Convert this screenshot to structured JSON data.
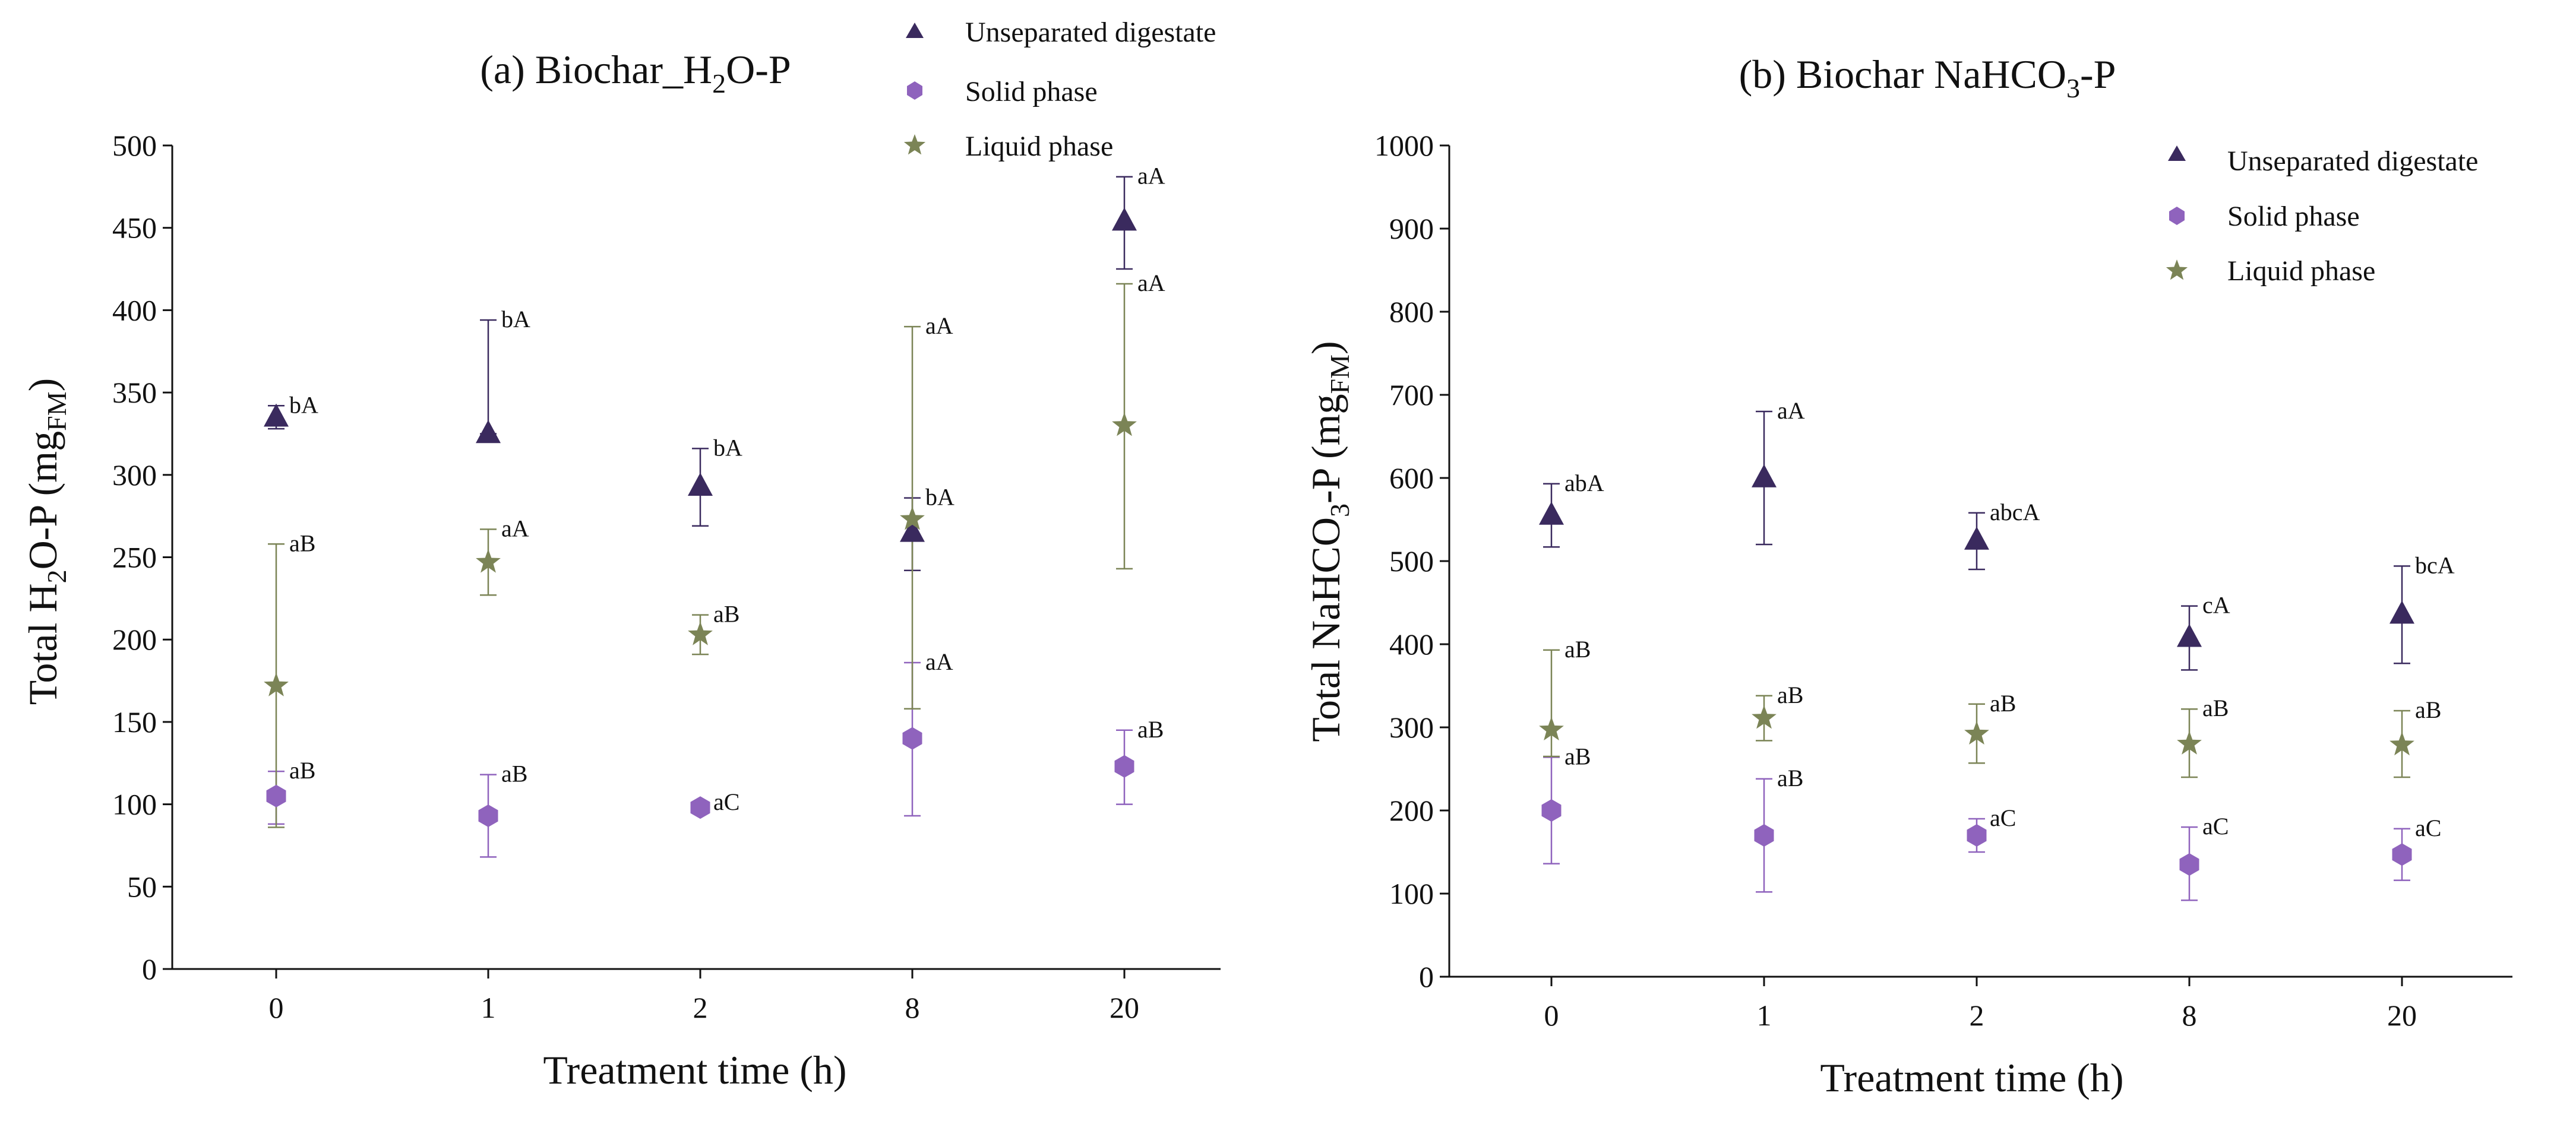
{
  "colors": {
    "unseparated": "#3a2a5e",
    "solid": "#8f63bd",
    "liquid": "#7b8456",
    "axis": "#111111"
  },
  "legend": {
    "unseparated": "Unseparated digestate",
    "solid": "Solid phase",
    "liquid": "Liquid phase"
  },
  "chart_data": [
    {
      "type": "scatter",
      "title_main": "(a) Biochar_H",
      "title_sub": "2",
      "title_rest": "O-P",
      "xlabel": "Treatment time (h)",
      "ylabel_main": "Total H",
      "ylabel_sub": "2",
      "ylabel_rest": "O-P (mg",
      "ylabel_unit_sub": "FM",
      "ylabel_close": ")",
      "categories": [
        "0",
        "1",
        "2",
        "8",
        "20"
      ],
      "ylim": [
        0,
        500
      ],
      "yticks": [
        0,
        50,
        100,
        150,
        200,
        250,
        300,
        350,
        400,
        450,
        500
      ],
      "legend_position": "top-center",
      "series": [
        {
          "key": "unseparated",
          "name": "Unseparated digestate",
          "marker": "triangle",
          "values": [
            335,
            325,
            293,
            265,
            454
          ],
          "err_low": [
            328,
            325,
            269,
            242,
            425
          ],
          "err_high": [
            342,
            394,
            316,
            286,
            481
          ],
          "labels": [
            "bA",
            "bA",
            "bA",
            "bA",
            "aA"
          ]
        },
        {
          "key": "solid",
          "name": "Solid phase",
          "marker": "hexagon",
          "values": [
            105,
            93,
            98,
            140,
            123
          ],
          "err_low": [
            88,
            68,
            95,
            93,
            100
          ],
          "err_high": [
            120,
            118,
            101,
            186,
            145
          ],
          "labels": [
            "aB",
            "aB",
            "aC",
            "aA",
            "aB"
          ]
        },
        {
          "key": "liquid",
          "name": "Liquid phase",
          "marker": "star",
          "values": [
            172,
            247,
            203,
            273,
            330
          ],
          "err_low": [
            86,
            227,
            191,
            158,
            243
          ],
          "err_high": [
            258,
            267,
            215,
            390,
            416
          ],
          "labels": [
            "aB",
            "aA",
            "aB",
            "aA",
            "aA"
          ]
        }
      ]
    },
    {
      "type": "scatter",
      "title_main": "(b) Biochar NaHCO",
      "title_sub": "3",
      "title_rest": "-P",
      "xlabel": "Treatment time (h)",
      "ylabel_main": "Total NaHCO",
      "ylabel_sub": "3",
      "ylabel_rest": "-P (mg",
      "ylabel_unit_sub": "FM",
      "ylabel_close": ")",
      "categories": [
        "0",
        "1",
        "2",
        "8",
        "20"
      ],
      "ylim": [
        0,
        1000
      ],
      "yticks": [
        0,
        100,
        200,
        300,
        400,
        500,
        600,
        700,
        800,
        900,
        1000
      ],
      "legend_position": "top-right",
      "series": [
        {
          "key": "unseparated",
          "name": "Unseparated digestate",
          "marker": "triangle",
          "values": [
            555,
            600,
            525,
            408,
            436
          ],
          "err_low": [
            517,
            520,
            490,
            369,
            377
          ],
          "err_high": [
            593,
            680,
            558,
            446,
            494
          ],
          "labels": [
            "abA",
            "aA",
            "abcA",
            "cA",
            "bcA"
          ]
        },
        {
          "key": "solid",
          "name": "Solid phase",
          "marker": "hexagon",
          "values": [
            200,
            170,
            170,
            135,
            147
          ],
          "err_low": [
            136,
            102,
            150,
            92,
            116
          ],
          "err_high": [
            264,
            238,
            190,
            180,
            178
          ],
          "labels": [
            "aB",
            "aB",
            "aC",
            "aC",
            "aC"
          ]
        },
        {
          "key": "liquid",
          "name": "Liquid phase",
          "marker": "star",
          "values": [
            297,
            311,
            292,
            280,
            279
          ],
          "err_low": [
            265,
            284,
            257,
            240,
            240
          ],
          "err_high": [
            393,
            338,
            328,
            322,
            320
          ],
          "labels": [
            "aB",
            "aB",
            "aB",
            "aB",
            "aB"
          ]
        }
      ]
    }
  ]
}
